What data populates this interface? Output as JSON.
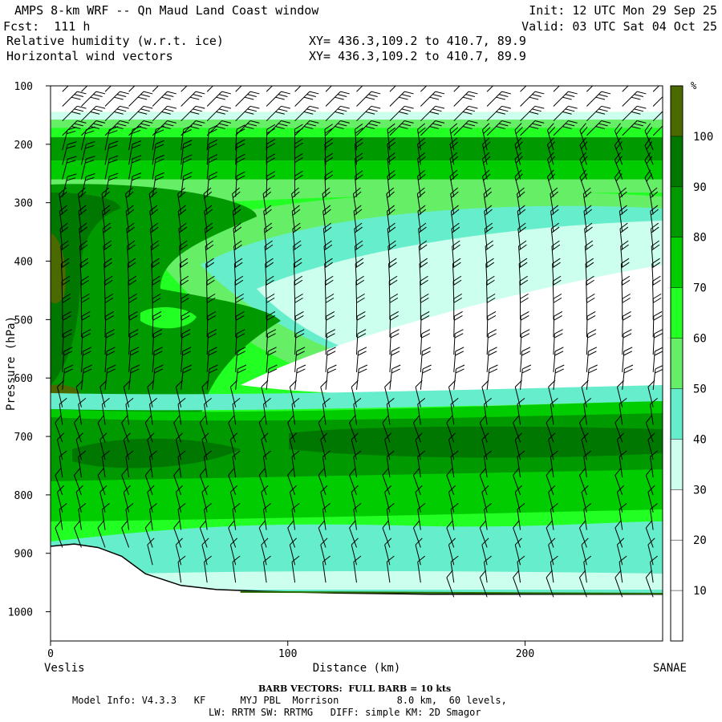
{
  "header": {
    "title": "AMPS 8-km WRF -- Qn Maud Land Coast window",
    "init": "Init: 12 UTC Mon 29 Sep 25",
    "forecast": "Fcst:  111 h",
    "valid": "Valid: 03 UTC Sat 04 Oct 25",
    "field1": "Relative humidity (w.r.t. ice)",
    "field2": "Horizontal wind vectors",
    "xy1": "XY= 436.3,109.2 to 410.7, 89.9",
    "xy2": "XY= 436.3,109.2 to 410.7, 89.9"
  },
  "footer": {
    "barb_note": "BARB VECTORS:  FULL BARB = 10 kts",
    "model_line1": "Model Info: V4.3.3   KF      MYJ PBL  Morrison          8.0 km,  60 levels,",
    "model_line2": "LW: RRTM SW: RRTMG   DIFF: simple KM: 2D Smagor"
  },
  "chart_data": {
    "type": "heatmap",
    "title": "Relative humidity (w.r.t. ice)",
    "xlabel": "Distance (km)",
    "ylabel": "Pressure (hPa)",
    "xlim": [
      0,
      258
    ],
    "ylim": [
      1050,
      100
    ],
    "x_ticks": [
      0,
      100,
      200
    ],
    "y_ticks": [
      100,
      200,
      300,
      400,
      500,
      600,
      700,
      800,
      900,
      1000
    ],
    "x_endpoints": {
      "left": "Veslis",
      "right": "SANAE"
    },
    "colorbar": {
      "unit": "%",
      "levels": [
        10,
        20,
        30,
        40,
        50,
        60,
        70,
        80,
        90,
        100
      ],
      "colors": [
        "#ffffff",
        "#ffffff",
        "#ffffff",
        "#ccffee",
        "#66eecc",
        "#66ee66",
        "#22ff22",
        "#00cc00",
        "#009900",
        "#007700",
        "#4a6a00"
      ]
    },
    "terrain_pressure": [
      [
        0,
        888
      ],
      [
        10,
        884
      ],
      [
        20,
        890
      ],
      [
        30,
        905
      ],
      [
        40,
        935
      ],
      [
        55,
        955
      ],
      [
        70,
        962
      ],
      [
        90,
        965
      ],
      [
        120,
        968
      ],
      [
        160,
        970
      ],
      [
        200,
        970
      ],
      [
        258,
        970
      ]
    ],
    "barb_rows_hpa": [
      110,
      135,
      160,
      185,
      210,
      235,
      260,
      290,
      320,
      350,
      380,
      410,
      440,
      470,
      500,
      530,
      560,
      590,
      620,
      650,
      680,
      710,
      740,
      770,
      800,
      830,
      860,
      890,
      920,
      950,
      975
    ],
    "barb_cols_km": [
      5,
      13,
      23,
      33,
      43,
      55,
      66,
      78,
      91,
      103,
      116,
      129,
      143,
      156,
      170,
      184,
      198,
      212,
      226,
      241,
      254
    ]
  }
}
